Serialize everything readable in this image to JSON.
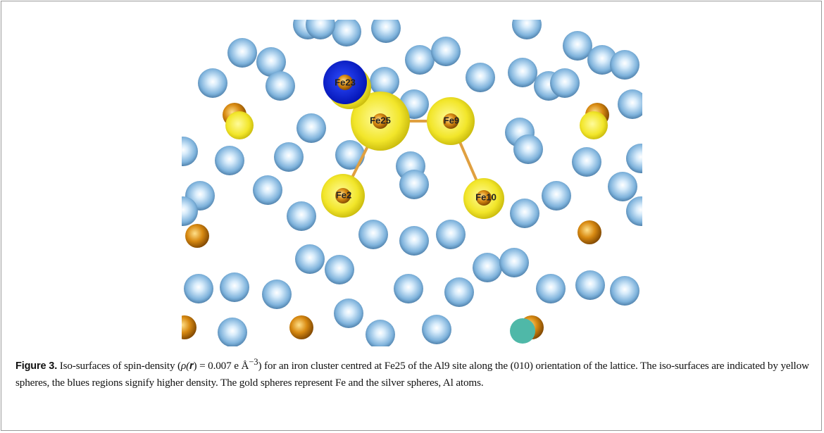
{
  "figure": {
    "atom_labels": [
      "Fe23",
      "Fe25",
      "Fe9",
      "Fe2",
      "Fe10"
    ],
    "caption": {
      "label": "Figure 3.",
      "segments": [
        " Iso-surfaces of spin-density (",
        "ρ(",
        "r",
        ") = 0.007 e Å",
        "−3",
        ") for an iron cluster centred at Fe25 of the Al9 site along the (010) orientation of the lattice. The iso-surfaces are indicated by yellow spheres, the blues regions signify higher density. The gold spheres represent Fe and the silver spheres, Al atoms."
      ]
    }
  }
}
